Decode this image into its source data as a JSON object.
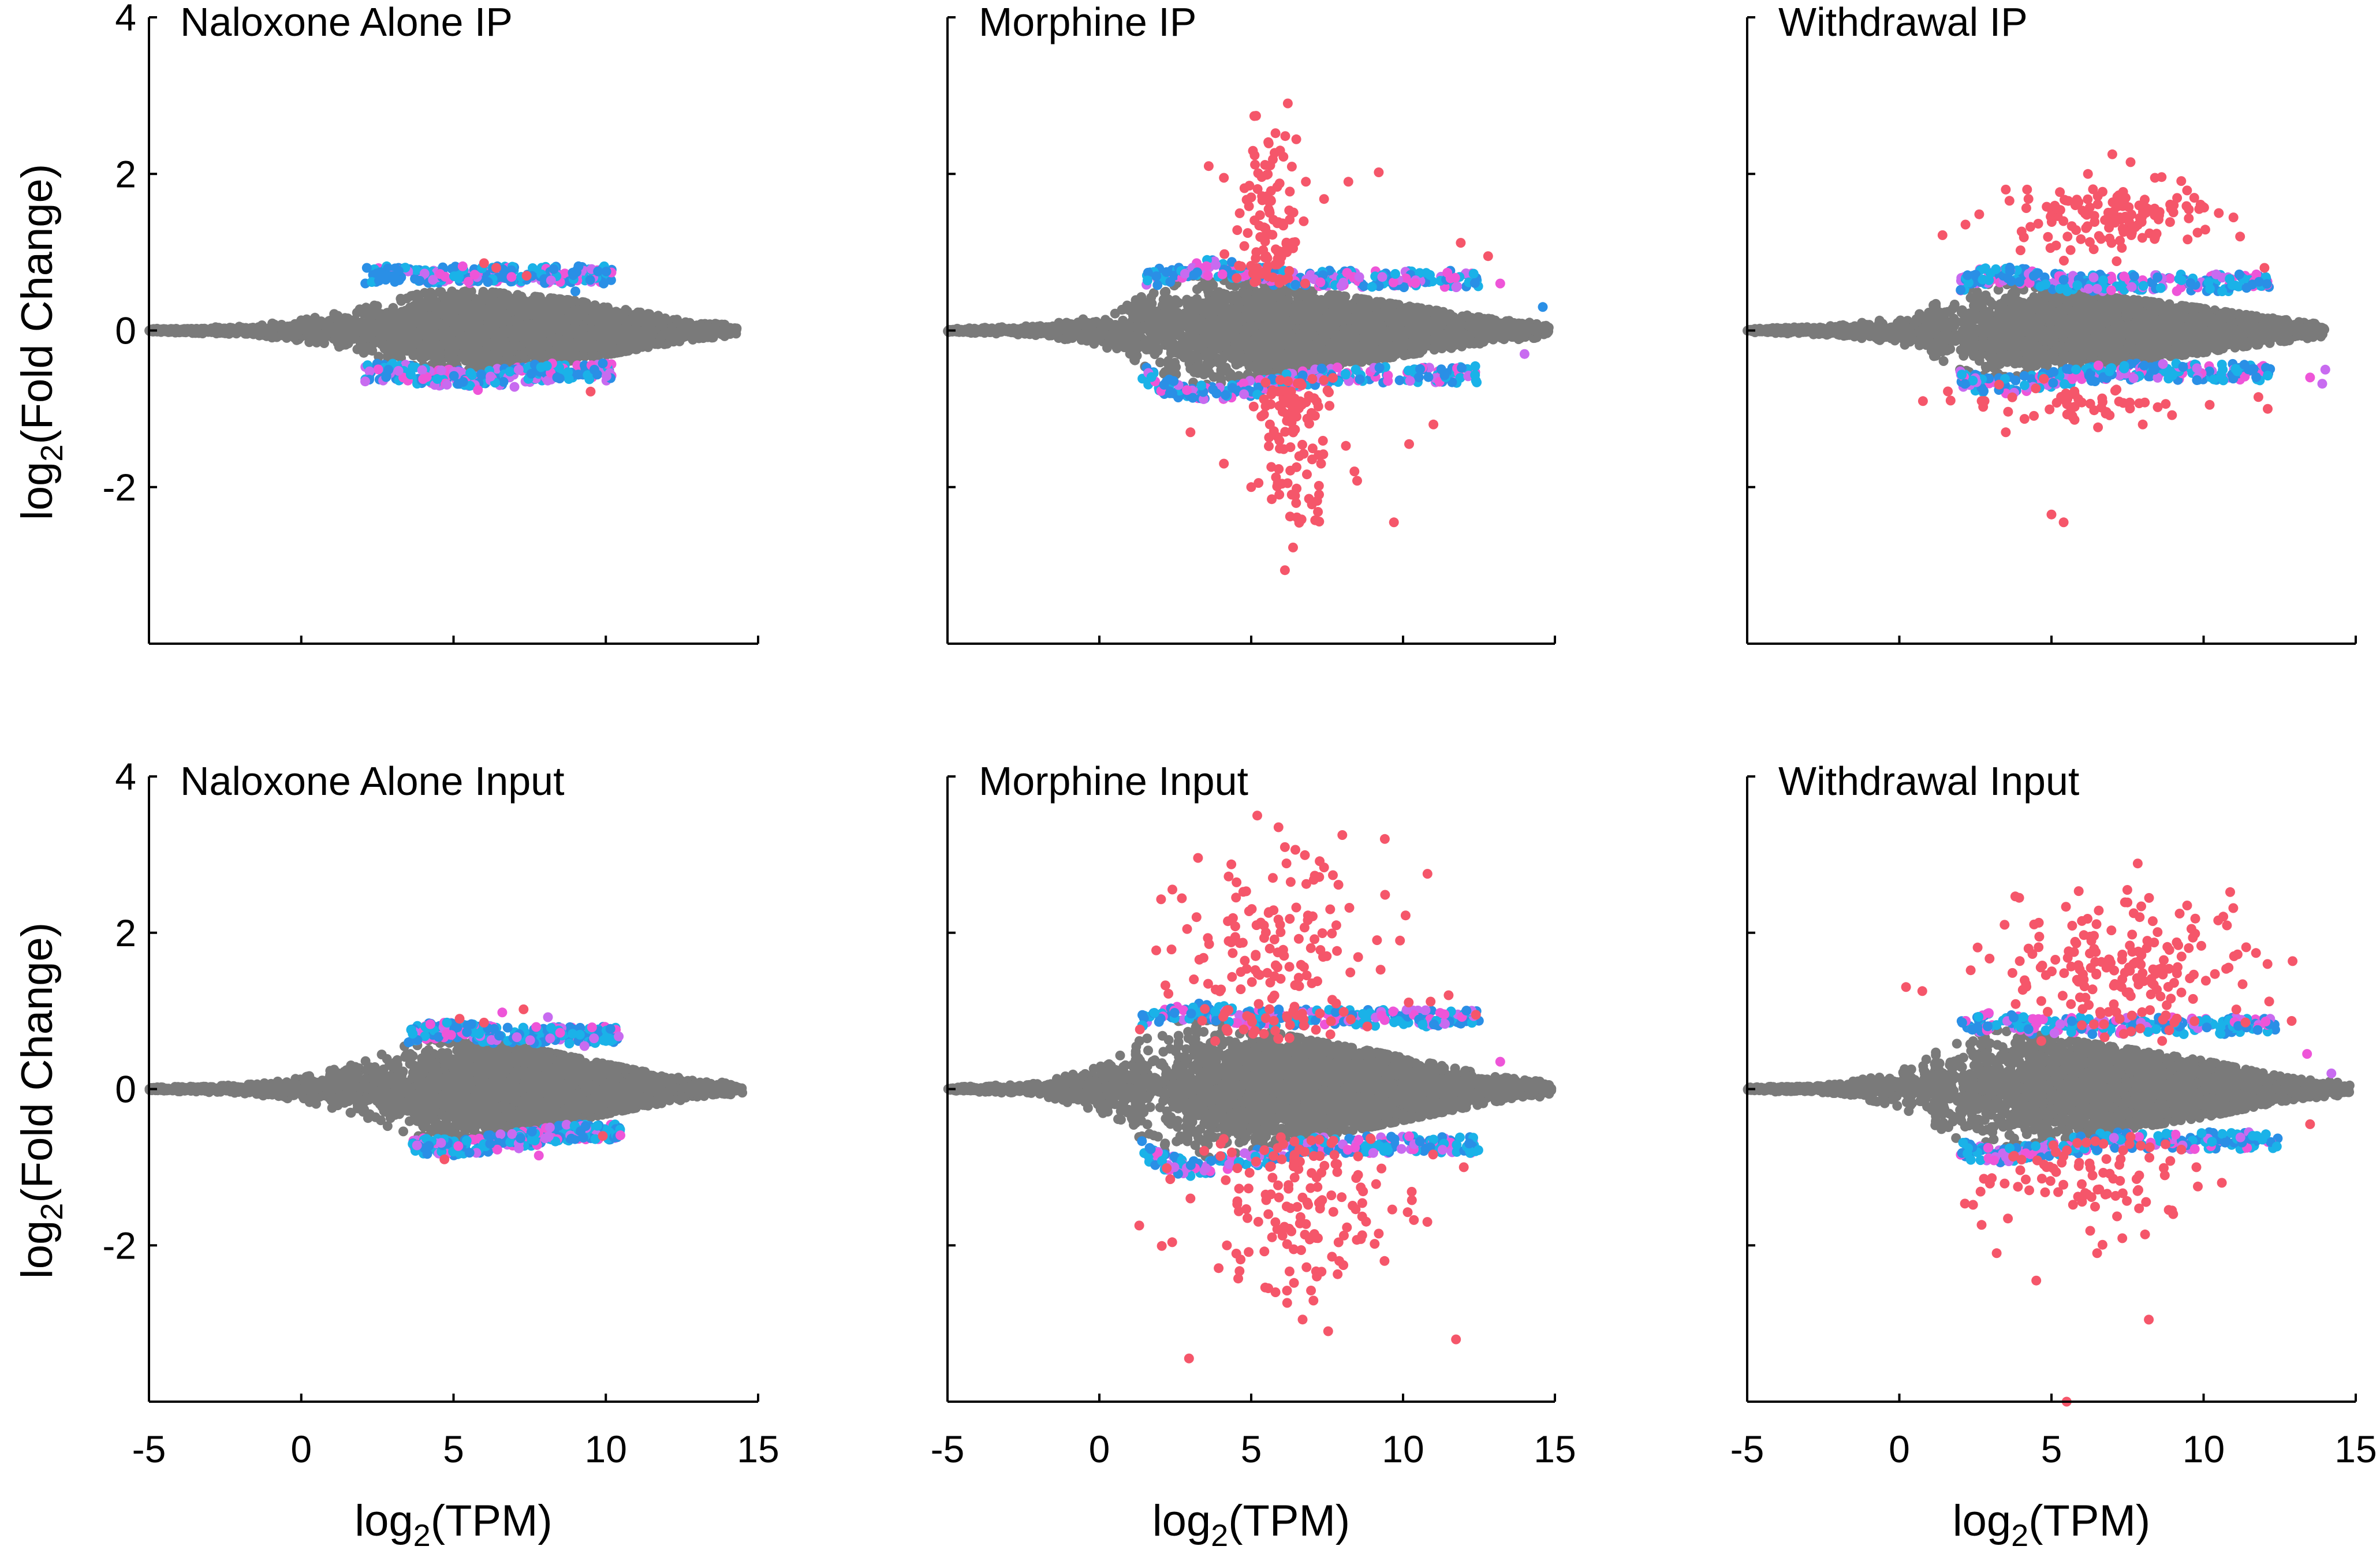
{
  "chart_data": {
    "type": "scatter",
    "layout": "2x3 small multiples",
    "xlabel": "log2(TPM)",
    "ylabel": "log2(Fold Change)",
    "xlim": [
      -5,
      15
    ],
    "ylim": [
      -4,
      4
    ],
    "xticks": [
      -5,
      0,
      5,
      10,
      15
    ],
    "yticks": [
      -2,
      0,
      2,
      4
    ],
    "grid": false,
    "colors": {
      "not_significant": "#7a7a7a",
      "cyan": "#1ab2e8",
      "blue": "#2a8fe6",
      "violet": "#c86bf0",
      "magenta": "#ee55d8",
      "red": "#f5566a"
    },
    "panels": [
      {
        "title": "Naloxone Alone IP",
        "spread": {
          "x": [
            -5,
            -2,
            0,
            2,
            4,
            5,
            6,
            7,
            8,
            9,
            10,
            11,
            12,
            13,
            14.3
          ],
          "halfwidth": [
            0.02,
            0.05,
            0.13,
            0.28,
            0.48,
            0.5,
            0.5,
            0.46,
            0.42,
            0.38,
            0.31,
            0.24,
            0.17,
            0.11,
            0.06
          ]
        },
        "significant_band": {
          "x_range": [
            2.1,
            10.2
          ],
          "upper": [
            0.6,
            0.85
          ],
          "lower": [
            -0.42,
            -0.75
          ]
        },
        "outliers": [
          [
            5.3,
            0.82,
            "magenta"
          ],
          [
            6.0,
            0.86,
            "red"
          ],
          [
            6.4,
            0.8,
            "red"
          ],
          [
            3.2,
            0.76,
            "blue"
          ],
          [
            7.4,
            0.7,
            "red"
          ],
          [
            8.2,
            0.64,
            "violet"
          ],
          [
            9.0,
            0.5,
            "blue"
          ],
          [
            2.1,
            -0.65,
            "violet"
          ],
          [
            5.8,
            -0.76,
            "magenta"
          ],
          [
            7.0,
            -0.72,
            "violet"
          ],
          [
            9.5,
            -0.78,
            "red"
          ],
          [
            9.9,
            -0.42,
            "blue"
          ],
          [
            4.0,
            -0.62,
            "magenta"
          ],
          [
            8.4,
            -0.6,
            "blue"
          ]
        ],
        "extras": []
      },
      {
        "title": "Morphine IP",
        "spread": {
          "x": [
            -5,
            -2,
            0,
            1,
            2,
            3,
            4,
            5,
            6,
            7,
            8,
            9,
            10,
            11,
            12,
            13,
            14.8
          ],
          "halfwidth": [
            0.02,
            0.06,
            0.18,
            0.34,
            0.58,
            0.7,
            0.68,
            0.62,
            0.56,
            0.5,
            0.44,
            0.38,
            0.32,
            0.26,
            0.2,
            0.14,
            0.08
          ]
        },
        "significant_band": {
          "x_range": [
            1.4,
            12.5
          ],
          "upper": [
            0.55,
            1.0
          ],
          "lower": [
            -0.45,
            -0.95
          ]
        },
        "outliers": [
          [
            5.8,
            2.52,
            "red"
          ],
          [
            3.6,
            2.1,
            "red"
          ],
          [
            4.1,
            1.95,
            "red"
          ],
          [
            6.8,
            1.9,
            "red"
          ],
          [
            8.2,
            1.9,
            "red"
          ],
          [
            9.2,
            2.02,
            "red"
          ],
          [
            5.0,
            1.7,
            "red"
          ],
          [
            7.4,
            1.68,
            "red"
          ],
          [
            11.9,
            1.12,
            "red"
          ],
          [
            12.8,
            0.95,
            "red"
          ],
          [
            13.2,
            0.6,
            "magenta"
          ],
          [
            14.6,
            0.3,
            "blue"
          ],
          [
            14.0,
            -0.3,
            "violet"
          ],
          [
            9.7,
            -2.45,
            "red"
          ],
          [
            5.0,
            -2.0,
            "red"
          ],
          [
            6.2,
            -1.95,
            "red"
          ],
          [
            7.3,
            -1.7,
            "red"
          ],
          [
            8.4,
            -1.8,
            "red"
          ],
          [
            4.1,
            -1.7,
            "red"
          ],
          [
            3.0,
            -1.3,
            "red"
          ],
          [
            10.2,
            -1.45,
            "red"
          ],
          [
            11.0,
            -1.2,
            "red"
          ]
        ],
        "extras": [
          [
            5.5,
            1.4,
            110,
            0.55,
            1.9
          ],
          [
            6.5,
            -1.25,
            110,
            0.55,
            1.85
          ]
        ]
      },
      {
        "title": "Withdrawal IP",
        "spread": {
          "x": [
            -5,
            -2,
            0,
            1,
            2,
            3,
            4,
            5,
            6,
            7,
            8,
            9,
            10,
            11,
            12,
            13,
            14
          ],
          "halfwidth": [
            0.02,
            0.06,
            0.16,
            0.3,
            0.5,
            0.6,
            0.58,
            0.52,
            0.46,
            0.42,
            0.38,
            0.33,
            0.28,
            0.22,
            0.17,
            0.12,
            0.07
          ]
        },
        "significant_band": {
          "x_range": [
            2.0,
            12.2
          ],
          "upper": [
            0.5,
            0.92
          ],
          "lower": [
            -0.42,
            -0.85
          ]
        },
        "outliers": [
          [
            7.0,
            2.25,
            "red"
          ],
          [
            7.6,
            2.15,
            "red"
          ],
          [
            6.2,
            2.0,
            "red"
          ],
          [
            8.4,
            1.95,
            "red"
          ],
          [
            3.5,
            1.8,
            "red"
          ],
          [
            4.2,
            1.8,
            "red"
          ],
          [
            10.5,
            1.5,
            "red"
          ],
          [
            11.2,
            1.2,
            "red"
          ],
          [
            9.8,
            1.25,
            "red"
          ],
          [
            12.0,
            0.8,
            "red"
          ],
          [
            5.0,
            -2.35,
            "red"
          ],
          [
            5.4,
            -2.45,
            "red"
          ],
          [
            13.5,
            -0.6,
            "magenta"
          ],
          [
            13.9,
            -0.68,
            "violet"
          ],
          [
            14.0,
            -0.5,
            "violet"
          ],
          [
            8.0,
            -1.2,
            "red"
          ],
          [
            10.2,
            -0.95,
            "red"
          ],
          [
            2.8,
            -0.9,
            "red"
          ],
          [
            3.5,
            -1.3,
            "red"
          ],
          [
            11.8,
            -0.85,
            "red"
          ]
        ],
        "extras": [
          [
            7.0,
            1.45,
            130,
            1.6,
            0.7
          ],
          [
            6.0,
            -0.95,
            50,
            1.8,
            0.3
          ]
        ]
      },
      {
        "title": "Naloxone Alone Input",
        "spread": {
          "x": [
            -5,
            -2,
            0,
            2,
            3,
            4,
            5,
            6,
            7,
            8,
            9,
            10,
            11,
            12,
            13,
            14.5
          ],
          "halfwidth": [
            0.02,
            0.05,
            0.14,
            0.34,
            0.5,
            0.62,
            0.64,
            0.6,
            0.55,
            0.48,
            0.4,
            0.32,
            0.24,
            0.17,
            0.11,
            0.06
          ]
        },
        "significant_band": {
          "x_range": [
            3.5,
            10.5
          ],
          "upper": [
            0.58,
            0.95
          ],
          "lower": [
            -0.45,
            -0.85
          ]
        },
        "outliers": [
          [
            7.3,
            1.02,
            "red"
          ],
          [
            6.6,
            0.98,
            "magenta"
          ],
          [
            5.2,
            0.9,
            "red"
          ],
          [
            8.1,
            0.92,
            "violet"
          ],
          [
            6.0,
            0.85,
            "red"
          ],
          [
            8.5,
            0.72,
            "magenta"
          ],
          [
            9.3,
            0.55,
            "violet"
          ],
          [
            4.7,
            -0.9,
            "red"
          ],
          [
            7.8,
            -0.85,
            "magenta"
          ],
          [
            3.8,
            -0.72,
            "violet"
          ],
          [
            9.9,
            -0.6,
            "red"
          ],
          [
            6.2,
            -0.7,
            "blue"
          ]
        ],
        "extras": []
      },
      {
        "title": "Morphine Input",
        "spread": {
          "x": [
            -5,
            -2,
            0,
            1,
            2,
            3,
            4,
            5,
            6,
            7,
            8,
            9,
            10,
            11,
            12,
            13,
            14.9
          ],
          "halfwidth": [
            0.02,
            0.07,
            0.28,
            0.52,
            0.82,
            0.9,
            0.86,
            0.78,
            0.7,
            0.62,
            0.55,
            0.48,
            0.4,
            0.32,
            0.24,
            0.16,
            0.08
          ]
        },
        "significant_band": {
          "x_range": [
            1.4,
            12.5
          ],
          "upper": [
            0.8,
            1.2
          ],
          "lower": [
            -0.6,
            -1.05
          ]
        },
        "outliers": [
          [
            5.2,
            3.5,
            "red"
          ],
          [
            5.9,
            3.35,
            "red"
          ],
          [
            8.0,
            3.25,
            "red"
          ],
          [
            9.4,
            3.2,
            "red"
          ],
          [
            6.3,
            2.65,
            "red"
          ],
          [
            3.2,
            2.2,
            "red"
          ],
          [
            4.5,
            2.45,
            "red"
          ],
          [
            7.6,
            2.3,
            "red"
          ],
          [
            9.9,
            1.9,
            "red"
          ],
          [
            11.5,
            1.2,
            "red"
          ],
          [
            12.4,
            0.95,
            "red"
          ],
          [
            13.2,
            0.35,
            "magenta"
          ],
          [
            14.4,
            0.0,
            "not_significant"
          ],
          [
            5.8,
            -2.6,
            "red"
          ],
          [
            7.9,
            -2.2,
            "red"
          ],
          [
            4.2,
            -2.0,
            "red"
          ],
          [
            6.4,
            -2.05,
            "red"
          ],
          [
            9.2,
            -1.85,
            "red"
          ],
          [
            3.0,
            -1.4,
            "red"
          ],
          [
            10.8,
            -1.7,
            "red"
          ],
          [
            12.0,
            -1.0,
            "red"
          ]
        ],
        "extras": [
          [
            5.8,
            1.6,
            160,
            1.8,
            2.0
          ],
          [
            6.5,
            -1.45,
            150,
            1.8,
            2.1
          ]
        ]
      },
      {
        "title": "Withdrawal Input",
        "spread": {
          "x": [
            -5,
            -2,
            0,
            1,
            2,
            3,
            4,
            5,
            6,
            7,
            8,
            9,
            10,
            11,
            12,
            13,
            14.8
          ],
          "halfwidth": [
            0.02,
            0.06,
            0.22,
            0.42,
            0.66,
            0.76,
            0.72,
            0.66,
            0.6,
            0.54,
            0.48,
            0.42,
            0.36,
            0.28,
            0.2,
            0.13,
            0.07
          ]
        },
        "significant_band": {
          "x_range": [
            2.0,
            12.5
          ],
          "upper": [
            0.7,
            1.05
          ],
          "lower": [
            -0.55,
            -0.95
          ]
        },
        "outliers": [
          [
            5.5,
            -4.0,
            "red"
          ],
          [
            8.2,
            -2.95,
            "red"
          ],
          [
            4.5,
            -2.45,
            "red"
          ],
          [
            6.5,
            -2.1,
            "red"
          ],
          [
            3.2,
            -2.1,
            "red"
          ],
          [
            9.0,
            -1.6,
            "red"
          ],
          [
            10.6,
            -1.2,
            "red"
          ],
          [
            7.9,
            2.2,
            "red"
          ],
          [
            6.0,
            2.15,
            "red"
          ],
          [
            9.6,
            2.05,
            "red"
          ],
          [
            4.6,
            1.95,
            "red"
          ],
          [
            11.0,
            1.7,
            "red"
          ],
          [
            12.1,
            1.6,
            "red"
          ],
          [
            13.4,
            0.45,
            "magenta"
          ],
          [
            13.5,
            -0.45,
            "red"
          ],
          [
            14.2,
            0.2,
            "violet"
          ]
        ],
        "extras": [
          [
            7.5,
            1.5,
            190,
            2.2,
            1.3
          ],
          [
            6.2,
            -1.15,
            90,
            1.8,
            0.9
          ]
        ]
      }
    ]
  }
}
